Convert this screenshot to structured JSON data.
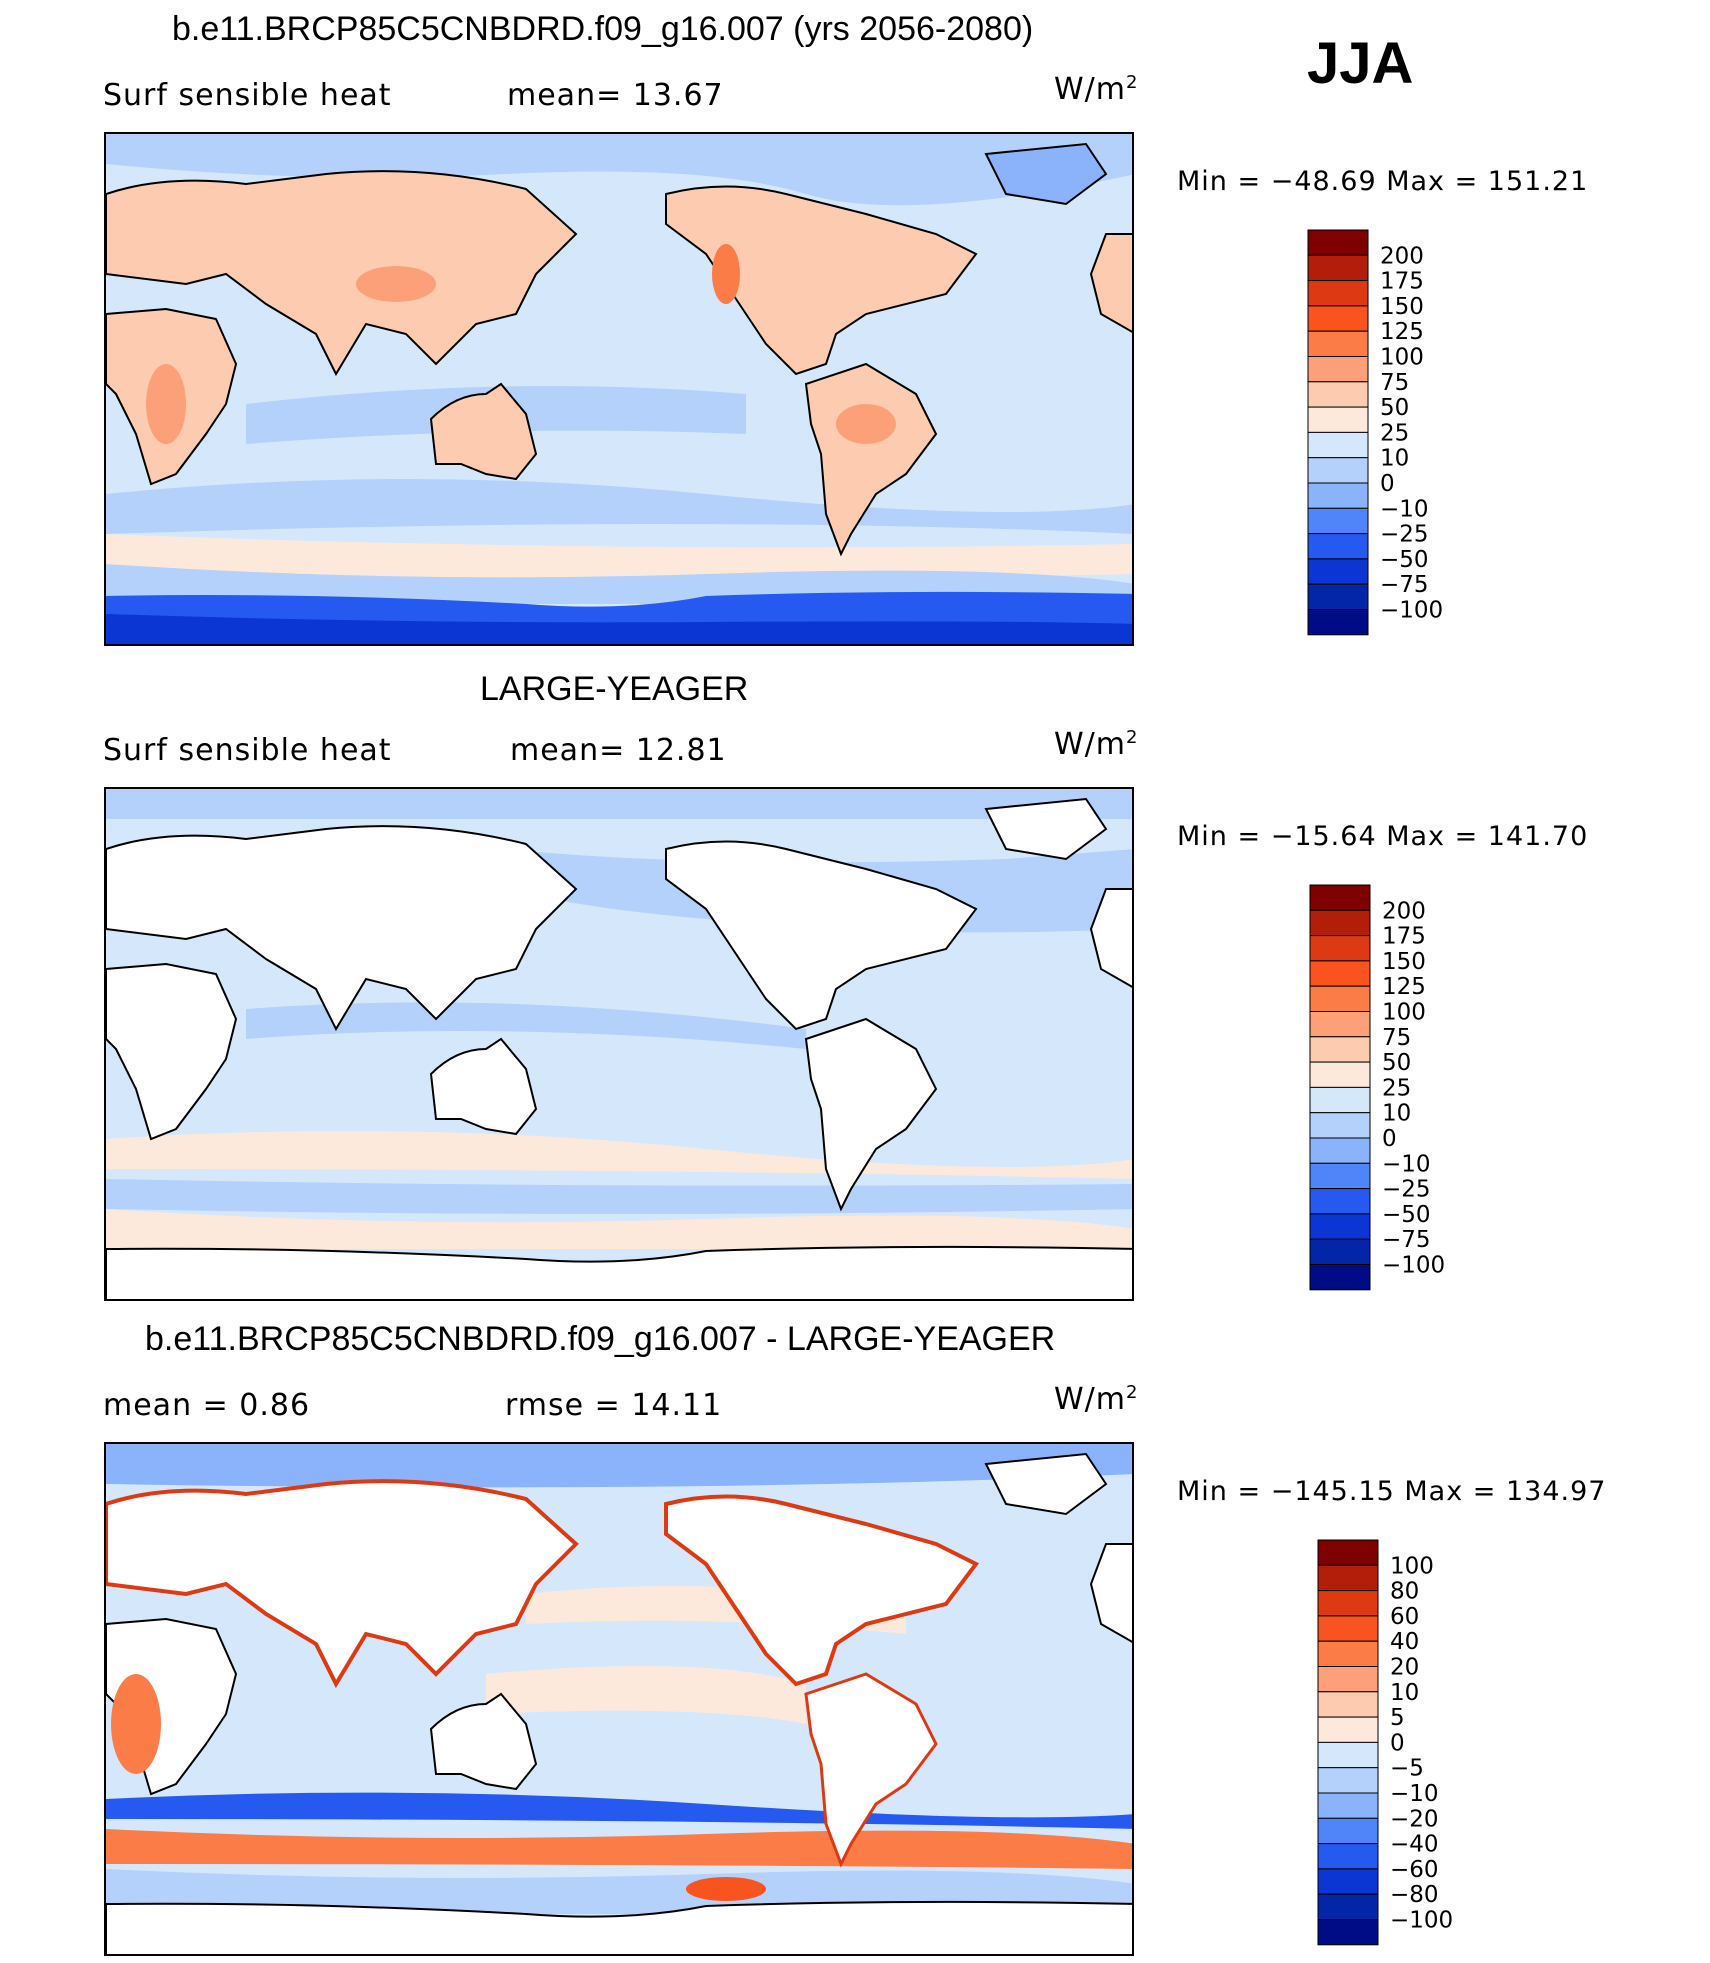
{
  "header": {
    "title": "b.e11.BRCP85C5CNBDRD.f09_g16.007 (yrs 2056-2080)",
    "season": "JJA"
  },
  "panels": [
    {
      "left_label": "Surf  sensible  heat",
      "center_label": "mean=   13.67",
      "units_base": "W/m",
      "units_exp": "2",
      "minmax": "Min  =  −48.69  Max  =  151.21",
      "style": "model",
      "colorbar_labels": [
        "200",
        "175",
        "150",
        "125",
        "100",
        "75",
        "50",
        "25",
        "10",
        "0",
        "−10",
        "−25",
        "−50",
        "−75",
        "−100"
      ]
    },
    {
      "title": "LARGE-YEAGER",
      "left_label": "Surf  sensible  heat",
      "center_label": "mean=   12.81",
      "units_base": "W/m",
      "units_exp": "2",
      "minmax": "Min  =  −15.64  Max  =  141.70",
      "style": "obs",
      "colorbar_labels": [
        "200",
        "175",
        "150",
        "125",
        "100",
        "75",
        "50",
        "25",
        "10",
        "0",
        "−10",
        "−25",
        "−50",
        "−75",
        "−100"
      ]
    },
    {
      "title": "b.e11.BRCP85C5CNBDRD.f09_g16.007 - LARGE-YEAGER",
      "left_label": "mean  =      0.86",
      "center_label": "rmse  =     14.11",
      "units_base": "W/m",
      "units_exp": "2",
      "minmax": "Min  =  −145.15  Max  =  134.97",
      "style": "diff",
      "colorbar_labels": [
        "100",
        "80",
        "60",
        "40",
        "20",
        "10",
        "5",
        "0",
        "−5",
        "−10",
        "−20",
        "−40",
        "−60",
        "−80",
        "−100"
      ]
    }
  ],
  "colors": {
    "colorbar": [
      "#7f0000",
      "#b31e0a",
      "#dd3a14",
      "#f9541f",
      "#fb7c47",
      "#fba079",
      "#fdcbb0",
      "#fde9dc",
      "#d5e8fb",
      "#b3d1fb",
      "#8ab3fb",
      "#4f85f9",
      "#2559ef",
      "#0b36d3",
      "#0326a8",
      "#000c85"
    ],
    "land_model": "#fccbb0",
    "ocean_model": "#d5e8fb",
    "antarctic": "#2559ef"
  }
}
